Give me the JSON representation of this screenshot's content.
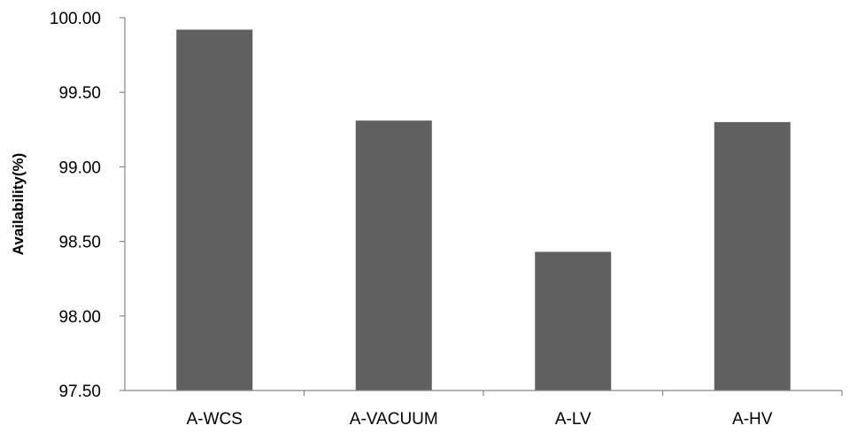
{
  "chart_data": {
    "type": "bar",
    "title": "",
    "xlabel": "",
    "ylabel": "Availability(%)",
    "categories": [
      "A-WCS",
      "A-VACUUM",
      "A-LV",
      "A-HV"
    ],
    "values": [
      99.92,
      99.31,
      98.43,
      99.3
    ],
    "ylim": [
      97.5,
      100.0
    ],
    "yticks": [
      "97.50",
      "98.00",
      "98.50",
      "99.00",
      "99.50",
      "100.00"
    ],
    "grid": false,
    "legend": "none",
    "bar_color": "#606060",
    "axis_color": "#868686"
  }
}
